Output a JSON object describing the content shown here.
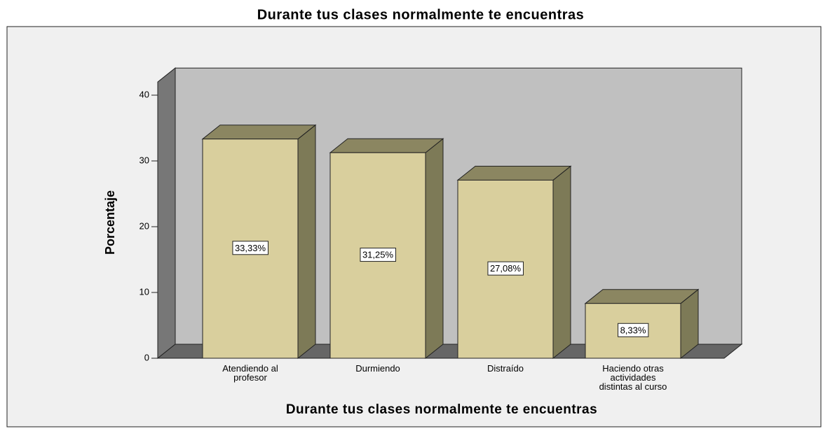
{
  "chart_data": {
    "type": "bar3d",
    "title": "Durante tus clases normalmente te encuentras",
    "x_label": "Durante tus clases normalmente te encuentras",
    "y_label": "Porcentaje",
    "categories": [
      "Atendiendo al profesor",
      "Durmiendo",
      "Distraído",
      "Haciendo otras actividades distintas al curso"
    ],
    "values": [
      33.33,
      31.25,
      27.08,
      8.33
    ],
    "value_labels": [
      "33,33%",
      "31,25%",
      "27,08%",
      "8,33%"
    ],
    "color": "#d9cf9d",
    "ylim": [
      0,
      42
    ],
    "yticks": [
      0,
      10,
      20,
      30,
      40
    ]
  }
}
